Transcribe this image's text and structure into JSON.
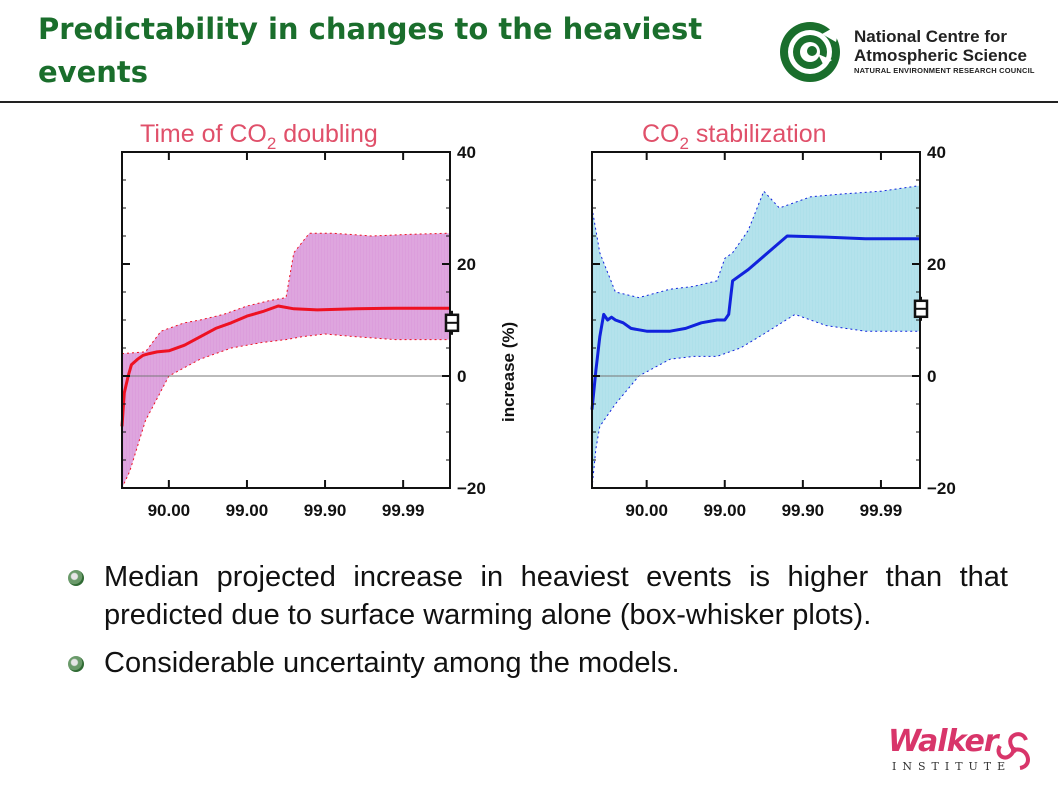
{
  "slide": {
    "title": "Predictability in changes to the heaviest events"
  },
  "logo_ncas": {
    "line1": "National Centre for",
    "line2": "Atmospheric Science",
    "line3": "NATURAL ENVIRONMENT RESEARCH COUNCIL",
    "color": "#1a6e2c"
  },
  "chart_data": [
    {
      "type": "area",
      "panel_title": "Time of CO",
      "panel_title_sub": "2",
      "panel_title_tail": " doubling",
      "title_color": "#e0506a",
      "band_color": "#dc9edc",
      "median_color": "#ee1122",
      "x_tick_labels": [
        "90.00",
        "99.00",
        "99.90",
        "99.99"
      ],
      "y_tick_labels": [
        "40",
        "20",
        "0",
        "−20"
      ],
      "ylabel": "increase (%)",
      "ylim": [
        -20,
        40
      ],
      "x_range": [
        0,
        4.2
      ],
      "x_ticks": [
        0.6,
        1.6,
        2.6,
        3.6
      ],
      "median": {
        "x": [
          0.0,
          0.03,
          0.08,
          0.12,
          0.2,
          0.27,
          0.35,
          0.45,
          0.6,
          0.8,
          1.0,
          1.2,
          1.4,
          1.6,
          1.8,
          2.0,
          2.2,
          2.5,
          3.0,
          3.5,
          4.2
        ],
        "y": [
          -9,
          -3,
          0,
          2,
          3,
          3.7,
          4,
          4.3,
          4.5,
          5.5,
          7,
          8.5,
          9.5,
          10.7,
          11.5,
          12.5,
          12,
          11.8,
          12,
          12.1,
          12.1
        ]
      },
      "upper": {
        "x": [
          0.0,
          0.3,
          0.5,
          0.8,
          1.0,
          1.3,
          1.6,
          1.9,
          2.1,
          2.2,
          2.4,
          2.7,
          3.2,
          3.7,
          4.2
        ],
        "y": [
          4,
          4.3,
          8,
          9.5,
          10,
          11,
          12.5,
          13.5,
          14,
          22,
          25.5,
          25.5,
          25,
          25.3,
          25.5
        ]
      },
      "lower": {
        "x": [
          0.0,
          0.1,
          0.3,
          0.6,
          1.0,
          1.4,
          1.8,
          2.1,
          2.3,
          2.6,
          3.0,
          3.5,
          4.2
        ],
        "y": [
          -20,
          -17,
          -8,
          0,
          3,
          5,
          6,
          6.5,
          7,
          7.5,
          7,
          6.5,
          6.5
        ]
      },
      "box_whisker_y": 9.5,
      "zero_line": true
    },
    {
      "type": "area",
      "panel_title": "CO",
      "panel_title_sub": "2",
      "panel_title_tail": " stabilization",
      "title_color": "#e0506a",
      "band_color": "#aee0ea",
      "median_color": "#1122dd",
      "x_tick_labels": [
        "90.00",
        "99.00",
        "99.90",
        "99.99"
      ],
      "y_tick_labels": [
        "40",
        "20",
        "0",
        "−20"
      ],
      "ylim": [
        -20,
        40
      ],
      "x_range": [
        0,
        4.2
      ],
      "x_ticks": [
        0.7,
        1.7,
        2.7,
        3.7
      ],
      "median": {
        "x": [
          0.0,
          0.05,
          0.1,
          0.15,
          0.2,
          0.25,
          0.3,
          0.4,
          0.5,
          0.7,
          1.0,
          1.2,
          1.4,
          1.6,
          1.7,
          1.75,
          1.8,
          2.0,
          2.5,
          3.0,
          3.5,
          4.2
        ],
        "y": [
          -6,
          1,
          7,
          11,
          10,
          10.5,
          10,
          9.5,
          8.5,
          8,
          8,
          8.5,
          9.5,
          10,
          10,
          11,
          17,
          19,
          25,
          24.8,
          24.5,
          24.5
        ],
        "note": ""
      },
      "upper": {
        "x": [
          0.0,
          0.1,
          0.3,
          0.6,
          1.0,
          1.3,
          1.6,
          1.7,
          1.8,
          2.0,
          2.2,
          2.4,
          2.6,
          2.8,
          3.2,
          3.7,
          4.2
        ],
        "y": [
          30,
          22,
          15,
          14,
          15.5,
          16,
          17,
          21,
          22,
          26,
          33,
          30,
          31,
          32,
          32.5,
          33,
          34
        ],
        "note": ""
      },
      "lower": {
        "x": [
          0.0,
          0.05,
          0.1,
          0.3,
          0.6,
          1.0,
          1.3,
          1.6,
          1.7,
          1.9,
          2.2,
          2.6,
          3.0,
          3.5,
          4.2
        ],
        "y": [
          -20,
          -13,
          -9,
          -5,
          0,
          3,
          3.5,
          3.5,
          4,
          5,
          7.5,
          11,
          9,
          8,
          8
        ],
        "note": ""
      },
      "box_whisker_y": 12,
      "zero_line": true
    }
  ],
  "bullets": [
    "Median projected increase in heaviest events is higher than that predicted due to surface warming alone (box-whisker plots).",
    "Considerable uncertainty among the models."
  ],
  "logo_walker": {
    "word": "Walker",
    "sub": "INSTITUTE",
    "color": "#d8356a"
  }
}
